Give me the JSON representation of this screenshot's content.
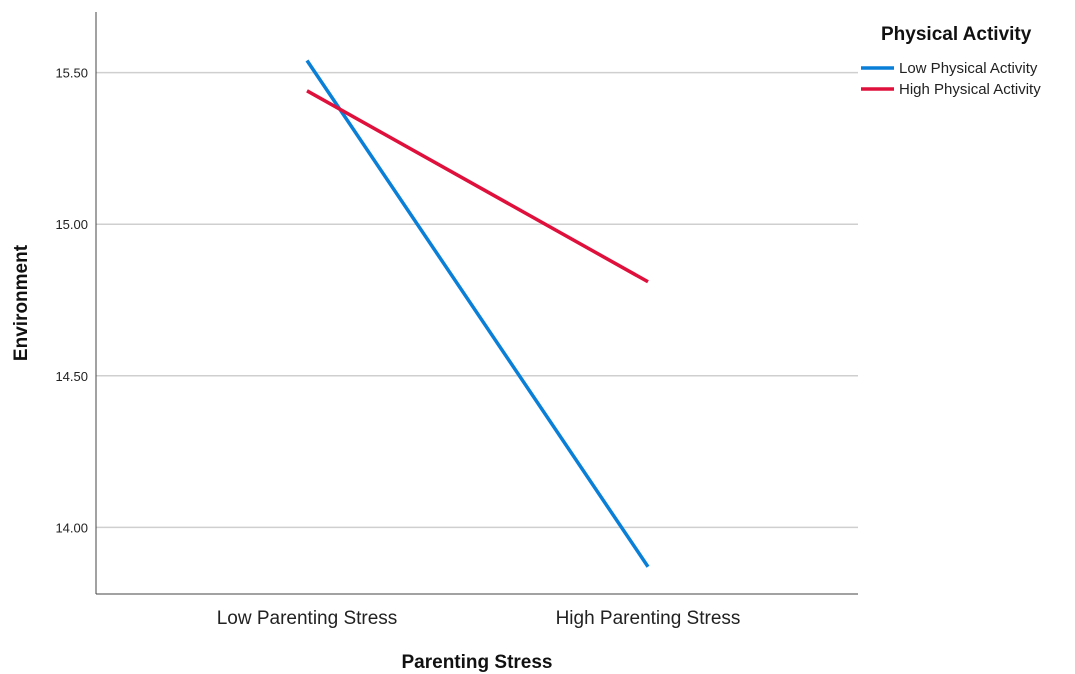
{
  "chart_data": {
    "type": "line",
    "xlabel": "Parenting Stress",
    "ylabel": "Environment",
    "categories": [
      "Low Parenting Stress",
      "High Parenting Stress"
    ],
    "ylim": [
      13.78,
      15.7
    ],
    "yticks": [
      "14.00",
      "14.50",
      "15.00",
      "15.50"
    ],
    "grid": "horizontal",
    "legend": {
      "title": "Physical Activity",
      "placement": "top-right"
    },
    "series": [
      {
        "name": "Low Physical Activity",
        "color": "#0a7fd8",
        "values": [
          15.54,
          13.87
        ]
      },
      {
        "name": "High Physical Activity",
        "color": "#e0103c",
        "values": [
          15.44,
          14.81
        ]
      }
    ]
  }
}
